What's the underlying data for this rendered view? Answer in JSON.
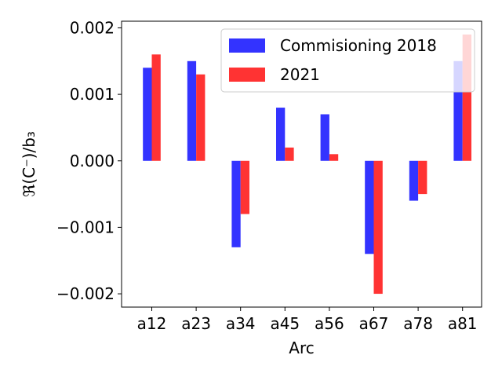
{
  "chart_data": {
    "type": "bar",
    "title": "",
    "xlabel": "Arc",
    "ylabel": "ℜ(C⁻)/b₃",
    "categories": [
      "a12",
      "a23",
      "a34",
      "a45",
      "a56",
      "a67",
      "a78",
      "a81"
    ],
    "series": [
      {
        "name": "Commisioning 2018",
        "color": "#3333ff",
        "values": [
          0.0014,
          0.0015,
          -0.0013,
          0.0008,
          0.0007,
          -0.0014,
          -0.0006,
          0.0015
        ]
      },
      {
        "name": "2021",
        "color": "#ff3333",
        "values": [
          0.0016,
          0.0013,
          -0.0008,
          0.0002,
          0.0001,
          -0.002,
          -0.0005,
          0.0019
        ]
      }
    ],
    "ylim": [
      -0.0022,
      0.0021
    ],
    "yticks": [
      0.002,
      0.001,
      0.0,
      -0.001,
      -0.002
    ],
    "ytick_labels": [
      "0.002",
      "0.001",
      "0.000",
      "−0.001",
      "−0.002"
    ],
    "legend_position": "top-right",
    "grid": false
  }
}
